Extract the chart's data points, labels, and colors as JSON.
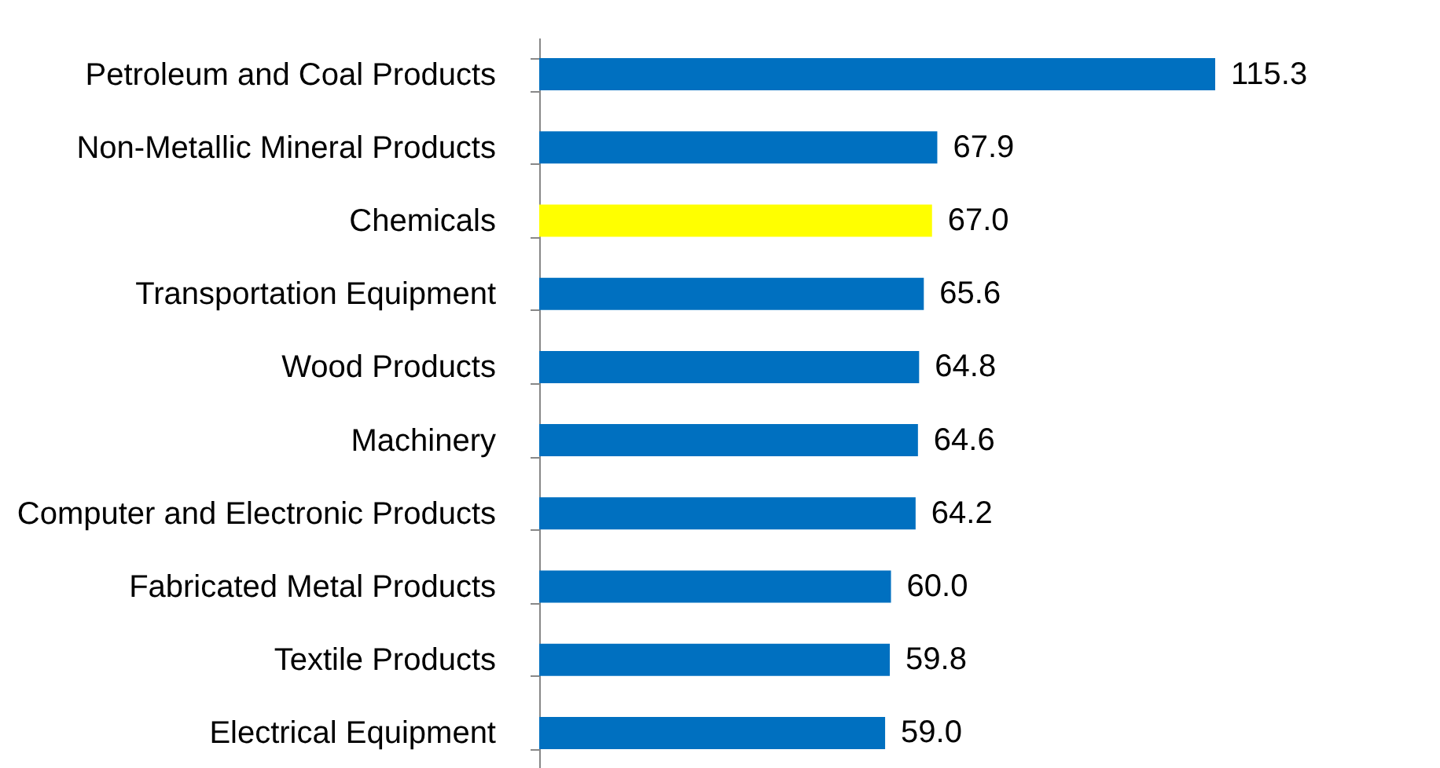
{
  "chart_data": {
    "type": "bar",
    "orientation": "horizontal",
    "categories": [
      "Petroleum and Coal Products",
      "Non-Metallic Mineral Products",
      "Chemicals",
      "Transportation Equipment",
      "Wood Products",
      "Machinery",
      "Computer and Electronic Products",
      "Fabricated Metal Products",
      "Textile Products",
      "Electrical Equipment"
    ],
    "values": [
      115.3,
      67.9,
      67.0,
      65.6,
      64.8,
      64.6,
      64.2,
      60.0,
      59.8,
      59.0
    ],
    "value_labels": [
      "115.3",
      "67.9",
      "67.0",
      "65.6",
      "64.8",
      "64.6",
      "64.2",
      "60.0",
      "59.8",
      "59.0"
    ],
    "colors": [
      "#0070c0",
      "#0070c0",
      "#ffff00",
      "#0070c0",
      "#0070c0",
      "#0070c0",
      "#0070c0",
      "#0070c0",
      "#0070c0",
      "#0070c0"
    ]
  }
}
